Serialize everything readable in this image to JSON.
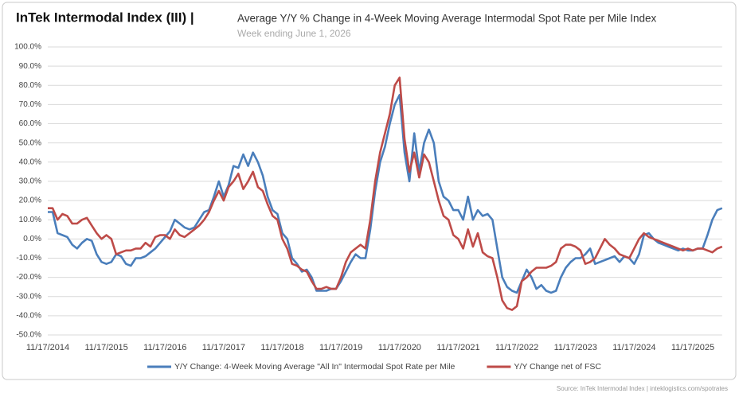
{
  "chart_data": {
    "type": "line",
    "title": "InTek Intermodal Index (III) |",
    "subtitle": "Average Y/Y % Change in 4-Week Moving Average Intermodal Spot Rate per Mile Index",
    "date_note": "Week ending June 1, 2026",
    "source": "Source: InTek Intermodal Index | inteklogistics.com/spotrates",
    "categories": [
      "11/17/2014",
      null,
      null,
      null,
      null,
      null,
      null,
      null,
      null,
      null,
      null,
      null,
      "11/17/2015",
      null,
      null,
      null,
      null,
      null,
      null,
      null,
      null,
      null,
      null,
      null,
      "11/17/2016",
      null,
      null,
      null,
      null,
      null,
      null,
      null,
      null,
      null,
      null,
      null,
      "11/17/2017",
      null,
      null,
      null,
      null,
      null,
      null,
      null,
      null,
      null,
      null,
      null,
      "11/17/2018",
      null,
      null,
      null,
      null,
      null,
      null,
      null,
      null,
      null,
      null,
      null,
      "11/17/2019",
      null,
      null,
      null,
      null,
      null,
      null,
      null,
      null,
      null,
      null,
      null,
      "11/17/2020",
      null,
      null,
      null,
      null,
      null,
      null,
      null,
      null,
      null,
      null,
      null,
      "11/17/2021",
      null,
      null,
      null,
      null,
      null,
      null,
      null,
      null,
      null,
      null,
      null,
      "11/17/2022",
      null,
      null,
      null,
      null,
      null,
      null,
      null,
      null,
      null,
      null,
      null,
      "11/17/2023",
      null,
      null,
      null,
      null,
      null,
      null,
      null,
      null,
      null,
      null,
      null,
      "11/17/2024",
      null,
      null,
      null,
      null,
      null,
      null,
      null,
      null,
      null,
      null,
      null,
      "11/17/2025",
      null,
      null,
      null,
      null,
      null,
      null
    ],
    "series": [
      {
        "name": "Y/Y Change: 4-Week Moving Average \"All In\" Intermodal Spot Rate per Mile",
        "color": "#4a7ebb",
        "values": [
          14,
          14,
          3,
          2,
          1,
          -3,
          -5,
          -2,
          0,
          -1,
          -8,
          -12,
          -13,
          -12,
          -8,
          -9,
          -13,
          -14,
          -10,
          -10,
          -9,
          -7,
          -5,
          -2,
          1,
          4,
          10,
          8,
          6,
          5,
          6,
          10,
          14,
          15,
          22,
          30,
          22,
          28,
          38,
          37,
          44,
          38,
          45,
          40,
          33,
          22,
          15,
          13,
          3,
          0,
          -10,
          -13,
          -17,
          -16,
          -20,
          -27,
          -27,
          -27,
          -26,
          -26,
          -22,
          -17,
          -12,
          -8,
          -10,
          -10,
          5,
          25,
          40,
          48,
          60,
          70,
          75,
          45,
          30,
          55,
          35,
          50,
          57,
          50,
          30,
          22,
          20,
          15,
          15,
          10,
          22,
          10,
          15,
          12,
          13,
          10,
          -5,
          -20,
          -25,
          -27,
          -28,
          -22,
          -16,
          -20,
          -26,
          -24,
          -27,
          -28,
          -27,
          -20,
          -15,
          -12,
          -10,
          -10,
          -8,
          -5,
          -13,
          -12,
          -11,
          -10,
          -9,
          -12,
          -9,
          -10,
          -13,
          -8,
          2,
          3,
          0,
          -2,
          -3,
          -4,
          -5,
          -6,
          -5,
          -6,
          -6,
          -5,
          -5,
          2,
          10,
          15,
          16
        ]
      },
      {
        "name": "Y/Y Change net of FSC",
        "color": "#be4b48",
        "values": [
          16,
          16,
          10,
          13,
          12,
          8,
          8,
          10,
          11,
          7,
          3,
          0,
          2,
          0,
          -8,
          -7,
          -6,
          -6,
          -5,
          -5,
          -2,
          -4,
          1,
          2,
          2,
          0,
          5,
          2,
          1,
          3,
          5,
          7,
          10,
          14,
          20,
          25,
          20,
          27,
          30,
          34,
          26,
          30,
          35,
          27,
          25,
          18,
          12,
          10,
          0,
          -5,
          -13,
          -14,
          -16,
          -17,
          -22,
          -26,
          -26,
          -25,
          -26,
          -26,
          -20,
          -12,
          -7,
          -5,
          -3,
          -5,
          10,
          30,
          45,
          55,
          65,
          80,
          84,
          52,
          35,
          45,
          32,
          44,
          40,
          30,
          20,
          12,
          10,
          2,
          0,
          -5,
          5,
          -4,
          3,
          -7,
          -9,
          -10,
          -20,
          -32,
          -36,
          -37,
          -35,
          -22,
          -20,
          -17,
          -15,
          -15,
          -15,
          -14,
          -12,
          -5,
          -3,
          -3,
          -4,
          -6,
          -13,
          -12,
          -10,
          -5,
          0,
          -3,
          -5,
          -8,
          -9,
          -10,
          -5,
          0,
          3,
          1,
          0,
          -1,
          -2,
          -3,
          -4,
          -5,
          -6,
          -5,
          -6,
          -5,
          -5,
          -6,
          -7,
          -5,
          -4
        ]
      }
    ],
    "ylim": [
      -50,
      100
    ],
    "yticks": [
      {
        "value": -50,
        "label": "-50.0%"
      },
      {
        "value": -40,
        "label": "-40.0%"
      },
      {
        "value": -30,
        "label": "-30.0%"
      },
      {
        "value": -20,
        "label": "-20.0%"
      },
      {
        "value": -10,
        "label": "-10.0%"
      },
      {
        "value": 0,
        "label": "0.0%"
      },
      {
        "value": 10,
        "label": "10.0%"
      },
      {
        "value": 20,
        "label": "20.0%"
      },
      {
        "value": 30,
        "label": "30.0%"
      },
      {
        "value": 40,
        "label": "40.0%"
      },
      {
        "value": 50,
        "label": "50.0%"
      },
      {
        "value": 60,
        "label": "60.0%"
      },
      {
        "value": 70,
        "label": "70.0%"
      },
      {
        "value": 80,
        "label": "80.0%"
      },
      {
        "value": 90,
        "label": "90.0%"
      },
      {
        "value": 100,
        "label": "100.0%"
      }
    ],
    "grid": true,
    "legend": "bottom"
  }
}
